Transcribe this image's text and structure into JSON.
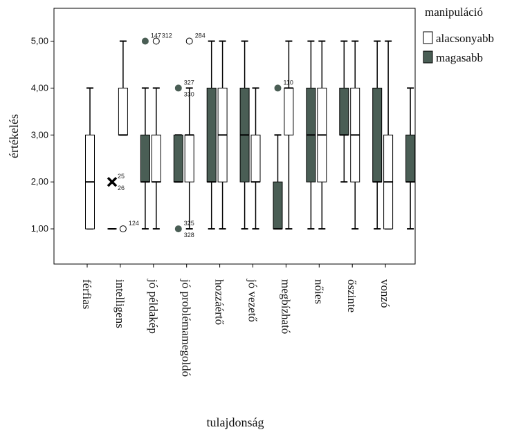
{
  "chart_data": {
    "type": "boxplot",
    "xlabel": "tulajdonság",
    "ylabel": "értékelés",
    "ylim": [
      0.25,
      5.7
    ],
    "yticks": [
      "1,00",
      "2,00",
      "3,00",
      "4,00",
      "5,00"
    ],
    "ytick_values": [
      1,
      2,
      3,
      4,
      5
    ],
    "grid": false,
    "legend_position": "top-right-outside",
    "legend": {
      "title": "manipuláció",
      "entries": [
        {
          "label": "alacsonyabb",
          "color": "#ffffff"
        },
        {
          "label": "magasabb",
          "color": "#4a5e55"
        }
      ]
    },
    "categories": [
      "férfias",
      "intelligens",
      "jó példakép",
      "jó problémamegoldó",
      "hozzáértő",
      "jó vezető",
      "megbízható",
      "nőies",
      "őszinte",
      "vonzó"
    ],
    "series": [
      {
        "name": "alacsonyabb",
        "color": "#ffffff",
        "boxes": [
          {
            "min": 1,
            "q1": 1,
            "median": 2,
            "q3": 3,
            "max": 4
          },
          {
            "min": 3,
            "q1": 3,
            "median": 3,
            "q3": 4,
            "max": 5
          },
          {
            "min": 1,
            "q1": 2,
            "median": 2,
            "q3": 3,
            "max": 4
          },
          {
            "min": 1,
            "q1": 2,
            "median": 3,
            "q3": 3,
            "max": 4
          },
          {
            "min": 1,
            "q1": 2,
            "median": 3,
            "q3": 4,
            "max": 5
          },
          {
            "min": 1,
            "q1": 2,
            "median": 2,
            "q3": 3,
            "max": 4
          },
          {
            "min": 1,
            "q1": 3,
            "median": 4,
            "q3": 4,
            "max": 5
          },
          {
            "min": 1,
            "q1": 2,
            "median": 3,
            "q3": 4,
            "max": 5
          },
          {
            "min": 1,
            "q1": 2,
            "median": 3,
            "q3": 4,
            "max": 5
          },
          {
            "min": 1,
            "q1": 1,
            "median": 2,
            "q3": 3,
            "max": 5
          }
        ]
      },
      {
        "name": "magasabb",
        "color": "#4a5e55",
        "boxes": [
          {
            "min": 1,
            "q1": 1,
            "median": 1,
            "q3": 1,
            "max": 1
          },
          {
            "min": 1,
            "q1": 2,
            "median": 2,
            "q3": 3,
            "max": 4
          },
          {
            "min": 2,
            "q1": 2,
            "median": 2,
            "q3": 3,
            "max": 3
          },
          {
            "min": 1,
            "q1": 2,
            "median": 2,
            "q3": 4,
            "max": 5
          },
          {
            "min": 1,
            "q1": 2,
            "median": 3,
            "q3": 4,
            "max": 5
          },
          {
            "min": 1,
            "q1": 1,
            "median": 1,
            "q3": 2,
            "max": 3
          },
          {
            "min": 1,
            "q1": 2,
            "median": 3,
            "q3": 4,
            "max": 5
          },
          {
            "min": 2,
            "q1": 3,
            "median": 3,
            "q3": 4,
            "max": 5
          },
          {
            "min": 1,
            "q1": 2,
            "median": 2,
            "q3": 4,
            "max": 5
          },
          {
            "min": 1,
            "q1": 2,
            "median": 2,
            "q3": 3,
            "max": 4
          }
        ]
      }
    ],
    "outliers": [
      {
        "category": "férfias",
        "series": "magasabb",
        "value": 2,
        "marker": "extreme",
        "labels": [
          "25",
          "26"
        ]
      },
      {
        "category": "intelligens",
        "series": "alacsonyabb",
        "value": 1,
        "marker": "circle",
        "labels": [
          "124"
        ]
      },
      {
        "category": "intelligens",
        "series": "magasabb",
        "value": 5,
        "marker": "circle",
        "labels": [
          "147"
        ]
      },
      {
        "category": "jó példakép",
        "series": "alacsonyabb",
        "value": 5,
        "marker": "circle",
        "labels": [
          "312"
        ]
      },
      {
        "category": "jó példakép",
        "series": "magasabb",
        "value": 4,
        "marker": "circle",
        "labels": [
          "327",
          "330"
        ]
      },
      {
        "category": "jó példakép",
        "series": "magasabb",
        "value": 1,
        "marker": "circle",
        "labels": [
          "325",
          "328"
        ]
      },
      {
        "category": "jó problémamegoldó",
        "series": "alacsonyabb",
        "value": 5,
        "marker": "circle",
        "labels": [
          "284"
        ]
      },
      {
        "category": "jó vezető",
        "series": "magasabb",
        "value": 4,
        "marker": "circle",
        "labels": [
          "110"
        ]
      }
    ]
  }
}
